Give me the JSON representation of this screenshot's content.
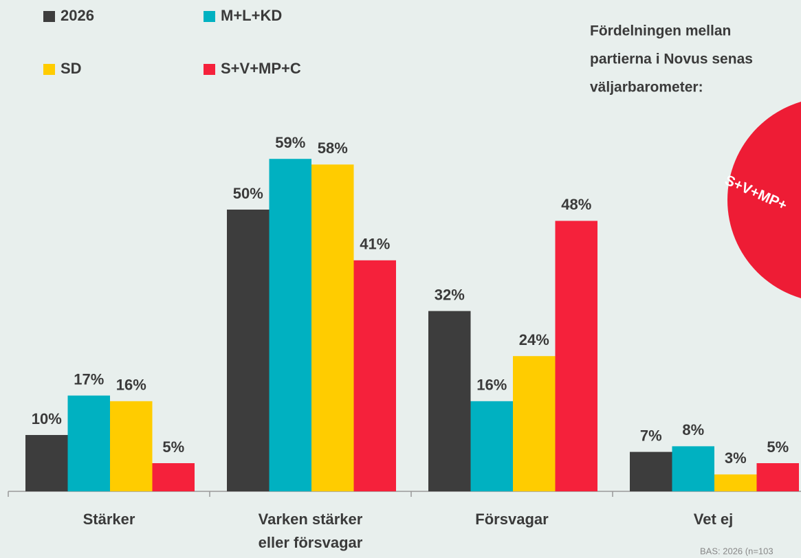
{
  "chart_data": {
    "type": "bar",
    "categories": [
      "Stärker",
      "Varken stärker\neller försvagar",
      "Försvagar",
      "Vet ej"
    ],
    "series": [
      {
        "name": "2026",
        "color": "#3d3d3d",
        "values": [
          10,
          50,
          32,
          7
        ],
        "value_labels": [
          "10%",
          "50%",
          "32%",
          "7%"
        ]
      },
      {
        "name": "M+L+KD",
        "color": "#00b1c1",
        "values": [
          17,
          59,
          16,
          8
        ],
        "value_labels": [
          "17%",
          "59%",
          "16%",
          "8%"
        ]
      },
      {
        "name": "SD",
        "color": "#ffcc00",
        "values": [
          16,
          58,
          24,
          3
        ],
        "value_labels": [
          "16%",
          "58%",
          "24%",
          "3%"
        ]
      },
      {
        "name": "S+V+MP+C",
        "color": "#f5213b",
        "values": [
          5,
          41,
          48,
          5
        ],
        "value_labels": [
          "5%",
          "41%",
          "48%",
          "5%"
        ]
      }
    ],
    "annotation": [
      "Fördelningen mellan",
      "partierna i Novus senas",
      "väljarbarometer:"
    ],
    "pie_label": "S+V+MP+",
    "pie_color": "#ee1c35",
    "footnote": "BAS: 2026 (n=103"
  }
}
